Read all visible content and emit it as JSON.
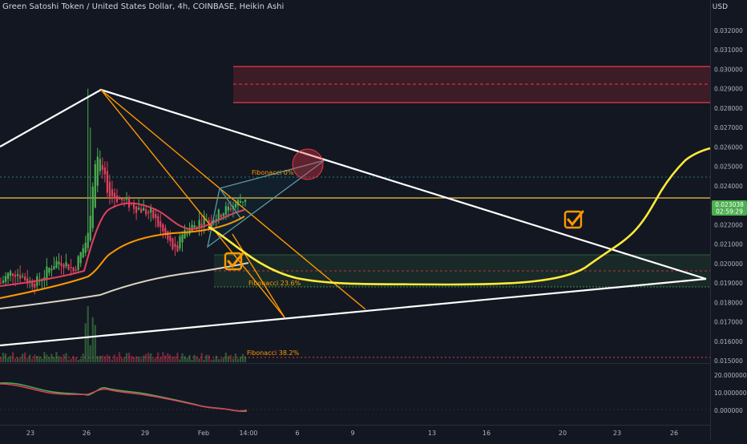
{
  "header": {
    "title": "Green Satoshi Token / United States Dollar, 4h, COINBASE, Heikin Ashi",
    "currency": "USD"
  },
  "colors": {
    "background": "#131722",
    "bull": "#4caf50",
    "bear": "#e0405c",
    "trendline": "#ffffff",
    "fib_line": "#ff9800",
    "projection": "#ffeb3b",
    "resistance_zone": "#f23645",
    "support_zone": "#4caf50",
    "price_label": "#4caf50"
  },
  "chart_data": [
    {
      "type": "candlestick",
      "title": "Green Satoshi Token / United States Dollar, 4h, COINBASE, Heikin Ashi",
      "y_axis_ticks": [
        "0.032000",
        "0.031000",
        "0.030000",
        "0.029000",
        "0.028000",
        "0.027000",
        "0.026000",
        "0.025000",
        "0.024000",
        "0.023000",
        "0.022000",
        "0.021000",
        "0.020000",
        "0.019000",
        "0.018000",
        "0.017000",
        "0.016000",
        "0.015000"
      ],
      "x_axis_ticks": [
        "23",
        "26",
        "29",
        "Feb",
        "14:00",
        "6",
        "9",
        "13",
        "16",
        "20",
        "23",
        "26"
      ],
      "ylim": [
        0.015,
        0.0325
      ],
      "last_price_label": "0.023038",
      "countdown_label": "02:59:29",
      "grid": false,
      "annotations": {
        "fib_levels": [
          {
            "label": "Fibonacci 0%",
            "value": 0.0245
          },
          {
            "label": "Fibonacci 23.6%",
            "value": 0.019
          },
          {
            "label": "Fibonacci 38.2%",
            "value": 0.0152
          }
        ],
        "resistance_zone": [
          0.0283,
          0.0302
        ],
        "support_zone": [
          0.0187,
          0.0204
        ],
        "horizontal_line": 0.0232
      },
      "candles_approx": [
        {
          "phase": "Jan 21-25 base",
          "range": [
            0.0185,
            0.0205
          ]
        },
        {
          "phase": "Jan 26 spike",
          "high": 0.029,
          "low": 0.0195
        },
        {
          "phase": "Jan 27-31 decline",
          "range": [
            0.021,
            0.024
          ]
        },
        {
          "phase": "Feb 1-4 recovery",
          "range": [
            0.0215,
            0.0235
          ]
        }
      ]
    },
    {
      "type": "line",
      "title": "",
      "y_axis_ticks": [
        "20.000000",
        "10.000000",
        "0.000000"
      ],
      "ylim": [
        -2,
        24
      ]
    }
  ]
}
